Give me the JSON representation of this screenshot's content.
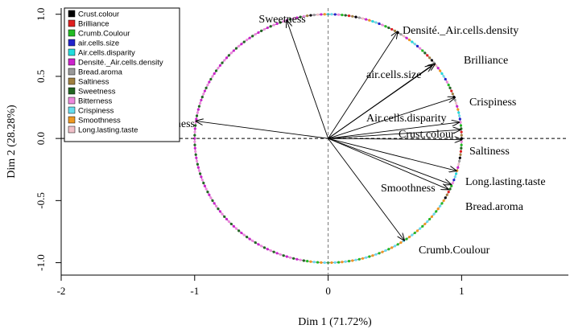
{
  "chart_data": {
    "type": "scatter",
    "subtype": "correlation-circle",
    "xlabel": "Dim 1 (71.72%)",
    "ylabel": "Dim 2 (28.28%)",
    "xlim": [
      -2,
      1.8
    ],
    "ylim": [
      -1.1,
      1.05
    ],
    "x_ticks": [
      -2,
      -1,
      0,
      1
    ],
    "x_tick_labels": [
      "-2",
      "-1",
      "0",
      "1"
    ],
    "y_ticks": [
      -1.0,
      -0.5,
      0.0,
      0.5,
      1.0
    ],
    "y_tick_labels": [
      "-1.0",
      "-0.5",
      "0.0",
      "0.5",
      "1.0"
    ],
    "grid": false,
    "legend_position": "top-left",
    "legend": [
      {
        "name": "Crust.colour",
        "color": "#000000"
      },
      {
        "name": "Brilliance",
        "color": "#df2020"
      },
      {
        "name": "Crumb.Coulour",
        "color": "#22bb22"
      },
      {
        "name": "air.cells.size",
        "color": "#2222cc"
      },
      {
        "name": "Air.cells.disparity",
        "color": "#22dddd"
      },
      {
        "name": "Densité._Air.cells.density",
        "color": "#cc22cc"
      },
      {
        "name": "Bread.aroma",
        "color": "#999999"
      },
      {
        "name": "Saltiness",
        "color": "#a08040"
      },
      {
        "name": "Sweetness",
        "color": "#226622"
      },
      {
        "name": "Bitterness",
        "color": "#ee88dd"
      },
      {
        "name": "Crispiness",
        "color": "#66ddee"
      },
      {
        "name": "Smoothness",
        "color": "#ee9922"
      },
      {
        "name": "Long.lasting.taste",
        "color": "#f0c0c8"
      }
    ],
    "vectors": [
      {
        "name": "Sweetness",
        "x": -0.31,
        "y": 0.95
      },
      {
        "name": "Densité._Air.cells.density",
        "x": 0.52,
        "y": 0.86
      },
      {
        "name": "Brilliance",
        "x": 0.8,
        "y": 0.6
      },
      {
        "name": "air.cells.size",
        "x": 0.78,
        "y": 0.59
      },
      {
        "name": "Crispiness",
        "x": 0.95,
        "y": 0.33
      },
      {
        "name": "Air.cells.disparity",
        "x": 0.98,
        "y": 0.13
      },
      {
        "name": "Crust.colour",
        "x": 0.99,
        "y": 0.07
      },
      {
        "name": "Bitterness",
        "x": -0.99,
        "y": 0.14
      },
      {
        "name": "Saltiness",
        "x": 1.0,
        "y": -0.01
      },
      {
        "name": "Long.lasting.taste",
        "x": 0.96,
        "y": -0.26
      },
      {
        "name": "Smoothness",
        "x": 0.9,
        "y": -0.41
      },
      {
        "name": "Bread.aroma",
        "x": 0.92,
        "y": -0.37
      },
      {
        "name": "Crumb.Coulour",
        "x": 0.57,
        "y": -0.82
      }
    ]
  }
}
